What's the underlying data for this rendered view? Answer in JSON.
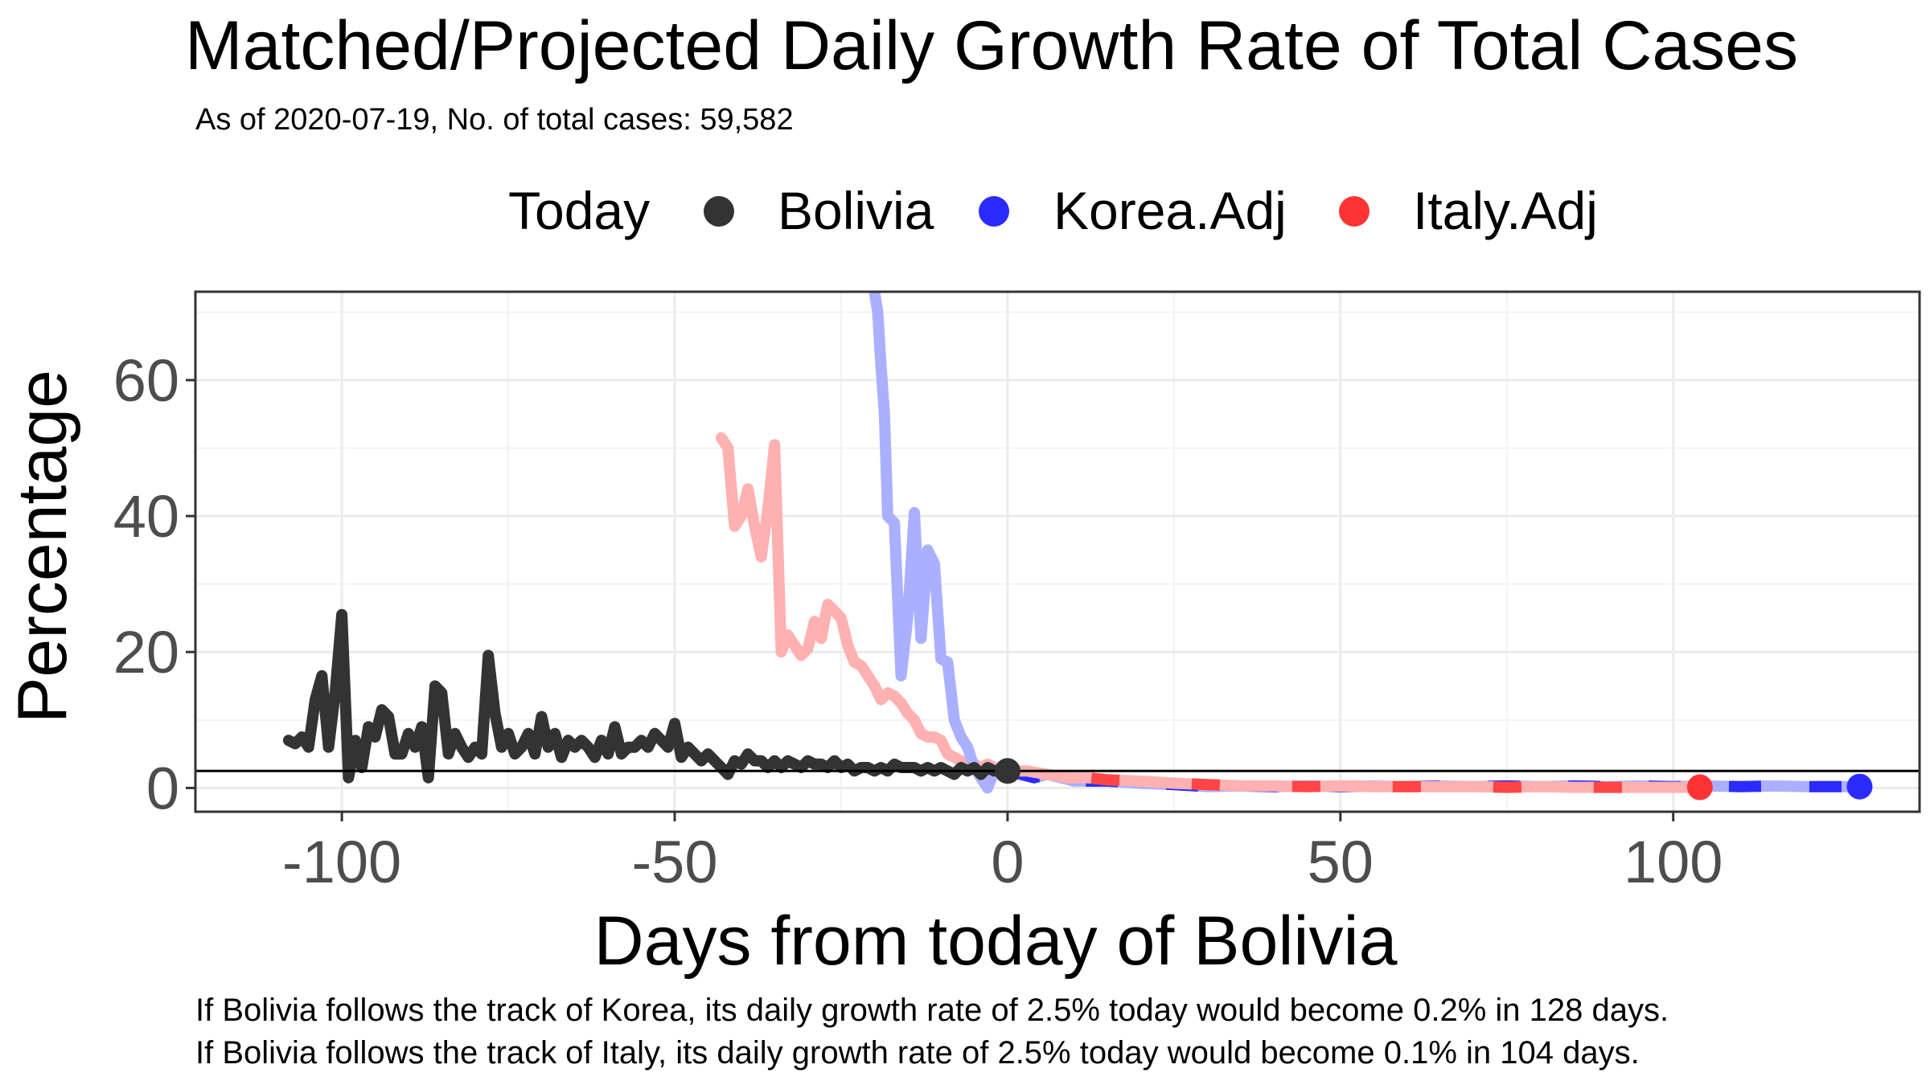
{
  "chart_data": {
    "type": "line",
    "title": "Matched/Projected Daily Growth Rate of Total Cases",
    "subtitle": "As of 2020-07-19, No. of total cases: 59,582",
    "xlabel": "Days from today of Bolivia",
    "ylabel": "Percentage",
    "xlim": [
      -122,
      137
    ],
    "ylim": [
      -3.5,
      73
    ],
    "x_ticks": [
      -100,
      -50,
      0,
      50,
      100
    ],
    "x_tick_labels": [
      "-100",
      "-50",
      "0",
      "50",
      "100"
    ],
    "y_ticks": [
      0,
      20,
      40,
      60
    ],
    "y_tick_labels": [
      "0",
      "20",
      "40",
      "60"
    ],
    "grid": true,
    "reference_line_y": 2.5,
    "legend": {
      "title": "Today",
      "position": "top",
      "entries": [
        {
          "label": "Bolivia",
          "color": "#333333"
        },
        {
          "label": "Korea.Adj",
          "color": "#2b2bff"
        },
        {
          "label": "Italy.Adj",
          "color": "#ff3333"
        }
      ]
    },
    "series": [
      {
        "name": "Bolivia",
        "color": "#333333",
        "points": [
          [
            -108,
            7
          ],
          [
            -107,
            6.5
          ],
          [
            -106,
            7.5
          ],
          [
            -105,
            6
          ],
          [
            -104,
            13
          ],
          [
            -103,
            16.5
          ],
          [
            -102,
            6
          ],
          [
            -101,
            14
          ],
          [
            -100,
            25.5
          ],
          [
            -99,
            1.5
          ],
          [
            -98,
            7
          ],
          [
            -97,
            3
          ],
          [
            -96,
            9
          ],
          [
            -95,
            7.5
          ],
          [
            -94,
            11.5
          ],
          [
            -93,
            10.5
          ],
          [
            -92,
            5
          ],
          [
            -91,
            5
          ],
          [
            -90,
            8
          ],
          [
            -89,
            6
          ],
          [
            -88,
            9
          ],
          [
            -87,
            1.5
          ],
          [
            -86,
            15
          ],
          [
            -85,
            14
          ],
          [
            -84,
            5
          ],
          [
            -83,
            8
          ],
          [
            -82,
            6
          ],
          [
            -81,
            4.5
          ],
          [
            -80,
            6
          ],
          [
            -79,
            5
          ],
          [
            -78,
            19.5
          ],
          [
            -77,
            11
          ],
          [
            -76,
            6
          ],
          [
            -75,
            8
          ],
          [
            -74,
            5
          ],
          [
            -73,
            6
          ],
          [
            -72,
            8
          ],
          [
            -71,
            5
          ],
          [
            -70,
            10.5
          ],
          [
            -69,
            6
          ],
          [
            -68,
            8
          ],
          [
            -67,
            4.5
          ],
          [
            -66,
            7
          ],
          [
            -65,
            6
          ],
          [
            -64,
            7
          ],
          [
            -63,
            6
          ],
          [
            -62,
            4.5
          ],
          [
            -61,
            7
          ],
          [
            -60,
            5
          ],
          [
            -59,
            9
          ],
          [
            -58,
            5
          ],
          [
            -57,
            6
          ],
          [
            -56,
            6
          ],
          [
            -55,
            7
          ],
          [
            -54,
            6
          ],
          [
            -53,
            8
          ],
          [
            -52,
            7
          ],
          [
            -51,
            6
          ],
          [
            -50,
            9.5
          ],
          [
            -49,
            4.5
          ],
          [
            -48,
            6
          ],
          [
            -47,
            5
          ],
          [
            -46,
            4
          ],
          [
            -45,
            5
          ],
          [
            -44,
            4
          ],
          [
            -43,
            3
          ],
          [
            -42,
            2
          ],
          [
            -41,
            4
          ],
          [
            -40,
            3.5
          ],
          [
            -39,
            5
          ],
          [
            -38,
            4
          ],
          [
            -37,
            4
          ],
          [
            -36,
            3
          ],
          [
            -35,
            4
          ],
          [
            -34,
            3
          ],
          [
            -33,
            4
          ],
          [
            -32,
            3.5
          ],
          [
            -31,
            3
          ],
          [
            -30,
            4
          ],
          [
            -29,
            3.5
          ],
          [
            -28,
            3.5
          ],
          [
            -27,
            3
          ],
          [
            -26,
            4
          ],
          [
            -25,
            3
          ],
          [
            -24,
            3.5
          ],
          [
            -23,
            2.5
          ],
          [
            -22,
            3
          ],
          [
            -21,
            3
          ],
          [
            -20,
            2.5
          ],
          [
            -19,
            3
          ],
          [
            -18,
            2.5
          ],
          [
            -17,
            3.5
          ],
          [
            -16,
            3
          ],
          [
            -15,
            3
          ],
          [
            -14,
            3
          ],
          [
            -13,
            2.5
          ],
          [
            -12,
            3
          ],
          [
            -11,
            2.5
          ],
          [
            -10,
            3
          ],
          [
            -9,
            2.5
          ],
          [
            -8,
            2
          ],
          [
            -7,
            3
          ],
          [
            -6,
            2.5
          ],
          [
            -5,
            3
          ],
          [
            -4,
            2
          ],
          [
            -3,
            3
          ],
          [
            -2,
            2.5
          ],
          [
            -1,
            2.5
          ],
          [
            0,
            2.5
          ]
        ],
        "today": [
          0,
          2.5
        ]
      },
      {
        "name": "Korea.Adj",
        "color": "#2b2bff",
        "faded_color": "#aab0ff",
        "points": [
          [
            -20,
            73
          ],
          [
            -19.5,
            70
          ],
          [
            -19,
            62
          ],
          [
            -18.5,
            55
          ],
          [
            -18,
            40
          ],
          [
            -17,
            39
          ],
          [
            -16,
            16.5
          ],
          [
            -15,
            25
          ],
          [
            -14,
            40.5
          ],
          [
            -13,
            22
          ],
          [
            -12,
            35
          ],
          [
            -11,
            33
          ],
          [
            -10,
            19
          ],
          [
            -9,
            18.5
          ],
          [
            -8,
            10
          ],
          [
            -7,
            7.5
          ],
          [
            -6,
            6
          ],
          [
            -5,
            3
          ],
          [
            -4,
            1.5
          ],
          [
            -3,
            0
          ],
          [
            -2,
            2.5
          ],
          [
            -1,
            3
          ],
          [
            0,
            2.5
          ],
          [
            2,
            2
          ],
          [
            4,
            1.5
          ],
          [
            6,
            2
          ],
          [
            8,
            1.5
          ],
          [
            10,
            1
          ],
          [
            15,
            1
          ],
          [
            20,
            0.7
          ],
          [
            25,
            0.5
          ],
          [
            30,
            0.2
          ],
          [
            35,
            0.3
          ],
          [
            40,
            0.2
          ],
          [
            45,
            0.3
          ],
          [
            50,
            0.2
          ],
          [
            55,
            0.3
          ],
          [
            60,
            0.2
          ],
          [
            65,
            0.3
          ],
          [
            70,
            0.2
          ],
          [
            75,
            0.3
          ],
          [
            80,
            0.2
          ],
          [
            85,
            0.3
          ],
          [
            90,
            0.2
          ],
          [
            95,
            0.3
          ],
          [
            100,
            0.2
          ],
          [
            105,
            0.3
          ],
          [
            110,
            0.2
          ],
          [
            115,
            0.3
          ],
          [
            120,
            0.2
          ],
          [
            125,
            0.2
          ],
          [
            128,
            0.2
          ]
        ],
        "today": [
          128,
          0.2
        ]
      },
      {
        "name": "Italy.Adj",
        "color": "#ff3333",
        "faded_color": "#ffb0b0",
        "points": [
          [
            -43,
            51.5
          ],
          [
            -42,
            50
          ],
          [
            -41,
            38.5
          ],
          [
            -40,
            40
          ],
          [
            -39,
            44
          ],
          [
            -38,
            38.5
          ],
          [
            -37,
            34
          ],
          [
            -36,
            41
          ],
          [
            -35,
            50.5
          ],
          [
            -34,
            20
          ],
          [
            -33,
            22.5
          ],
          [
            -32,
            21
          ],
          [
            -31,
            19.5
          ],
          [
            -30,
            20.5
          ],
          [
            -29,
            24.5
          ],
          [
            -28,
            22
          ],
          [
            -27,
            27
          ],
          [
            -26,
            26
          ],
          [
            -25,
            25
          ],
          [
            -24,
            21
          ],
          [
            -23,
            18.5
          ],
          [
            -22,
            18
          ],
          [
            -21,
            16.5
          ],
          [
            -20,
            15
          ],
          [
            -19,
            13
          ],
          [
            -18,
            14
          ],
          [
            -17,
            13.5
          ],
          [
            -16,
            12.5
          ],
          [
            -15,
            11
          ],
          [
            -14,
            10
          ],
          [
            -13,
            8
          ],
          [
            -12,
            7.5
          ],
          [
            -11,
            7.5
          ],
          [
            -10,
            7
          ],
          [
            -9,
            5
          ],
          [
            -8,
            4.5
          ],
          [
            -7,
            4
          ],
          [
            -6,
            3.5
          ],
          [
            -5,
            3.5
          ],
          [
            -4,
            3
          ],
          [
            -3,
            3.5
          ],
          [
            -2,
            3
          ],
          [
            -1,
            2.5
          ],
          [
            0,
            2.5
          ],
          [
            3,
            2.5
          ],
          [
            6,
            2
          ],
          [
            9,
            1.5
          ],
          [
            12,
            1.5
          ],
          [
            15,
            1.2
          ],
          [
            20,
            1
          ],
          [
            25,
            0.7
          ],
          [
            30,
            0.5
          ],
          [
            35,
            0.3
          ],
          [
            40,
            0.3
          ],
          [
            45,
            0.2
          ],
          [
            50,
            0.3
          ],
          [
            55,
            0.2
          ],
          [
            60,
            0.2
          ],
          [
            65,
            0.2
          ],
          [
            70,
            0.2
          ],
          [
            75,
            0.1
          ],
          [
            80,
            0.2
          ],
          [
            85,
            0.1
          ],
          [
            90,
            0.1
          ],
          [
            95,
            0.1
          ],
          [
            100,
            0.1
          ],
          [
            104,
            0.1
          ]
        ],
        "today": [
          104,
          0.1
        ]
      }
    ]
  },
  "footnotes": [
    "If Bolivia follows the track of Korea, its daily growth rate of 2.5% today would become 0.2% in 128 days.",
    "If Bolivia follows the track of Italy, its daily growth rate of 2.5% today would become 0.1% in 104 days."
  ]
}
